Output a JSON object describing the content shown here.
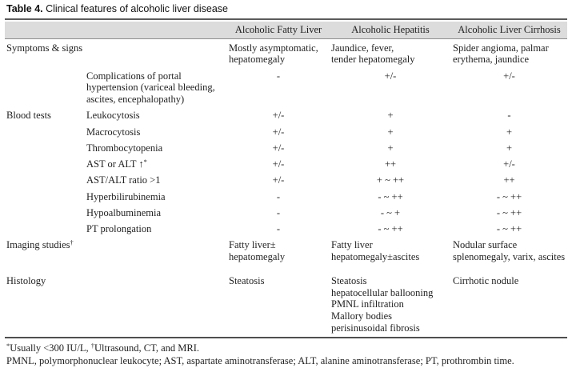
{
  "title": {
    "label": "Table 4.",
    "text": " Clinical features of alcoholic liver disease"
  },
  "columns": [
    "Alcoholic Fatty Liver",
    "Alcoholic Hepatitis",
    "Alcoholic Liver Cirrhosis"
  ],
  "rows": [
    {
      "section": "Symptoms & signs",
      "section_sup": "",
      "item": "",
      "item_sup": "",
      "type": "text",
      "cells": [
        "Mostly asymptomatic,\nhepatomegaly",
        "Jaundice, fever,\ntender hepatomegaly",
        "Spider angioma, palmar\nerythema, jaundice"
      ]
    },
    {
      "section": "",
      "section_sup": "",
      "item": "Complications of portal\nhypertension (variceal bleeding,\nascites, encephalopathy)",
      "item_sup": "",
      "type": "symbol",
      "cells": [
        "-",
        "+/-",
        "+/-"
      ]
    },
    {
      "section": "Blood tests",
      "section_sup": "",
      "item": "Leukocytosis",
      "item_sup": "",
      "type": "symbol",
      "cells": [
        "+/-",
        "+",
        "-"
      ]
    },
    {
      "section": "",
      "section_sup": "",
      "item": "Macrocytosis",
      "item_sup": "",
      "type": "symbol",
      "cells": [
        "+/-",
        "+",
        "+"
      ]
    },
    {
      "section": "",
      "section_sup": "",
      "item": "Thrombocytopenia",
      "item_sup": "",
      "type": "symbol",
      "cells": [
        "+/-",
        "+",
        "+"
      ]
    },
    {
      "section": "",
      "section_sup": "",
      "item": "AST or ALT ↑",
      "item_sup": "*",
      "type": "symbol",
      "cells": [
        "+/-",
        "++",
        "+/-"
      ]
    },
    {
      "section": "",
      "section_sup": "",
      "item": "AST/ALT ratio >1",
      "item_sup": "",
      "type": "symbol",
      "cells": [
        "+/-",
        "+ ~ ++",
        "++"
      ]
    },
    {
      "section": "",
      "section_sup": "",
      "item": "Hyperbilirubinemia",
      "item_sup": "",
      "type": "symbol",
      "cells": [
        "-",
        "- ~ ++",
        "- ~ ++"
      ]
    },
    {
      "section": "",
      "section_sup": "",
      "item": "Hypoalbuminemia",
      "item_sup": "",
      "type": "symbol",
      "cells": [
        "-",
        "- ~ +",
        "- ~ ++"
      ]
    },
    {
      "section": "",
      "section_sup": "",
      "item": "PT prolongation",
      "item_sup": "",
      "type": "symbol",
      "cells": [
        "-",
        "- ~ ++",
        "- ~ ++"
      ]
    },
    {
      "section": "Imaging studies",
      "section_sup": "†",
      "item": "",
      "item_sup": "",
      "type": "text",
      "cells": [
        "Fatty liver±\nhepatomegaly",
        "Fatty liver\nhepatomegaly±ascites",
        "Nodular surface\nsplenomegaly, varix, ascites"
      ]
    },
    {
      "section": "Histology",
      "section_sup": "",
      "item": "",
      "item_sup": "",
      "type": "text",
      "gap": true,
      "cells": [
        "Steatosis",
        "Steatosis\nhepatocellular ballooning\nPMNL infiltration\nMallory bodies\nperisinusoidal fibrosis",
        "Cirrhotic nodule"
      ]
    }
  ],
  "footnotes": {
    "f1_sup1": "*",
    "f1_text1": "Usually <300 IU/L, ",
    "f1_sup2": "†",
    "f1_text2": "Ultrasound, CT, and MRI.",
    "line2": "PMNL, polymorphonuclear leukocyte; AST, aspartate aminotransferase; ALT, alanine aminotransferase; PT, prothrombin time."
  },
  "colors": {
    "header_band": "#dcdcdc",
    "rule_dark": "#5c5c5c",
    "text": "#222222"
  }
}
